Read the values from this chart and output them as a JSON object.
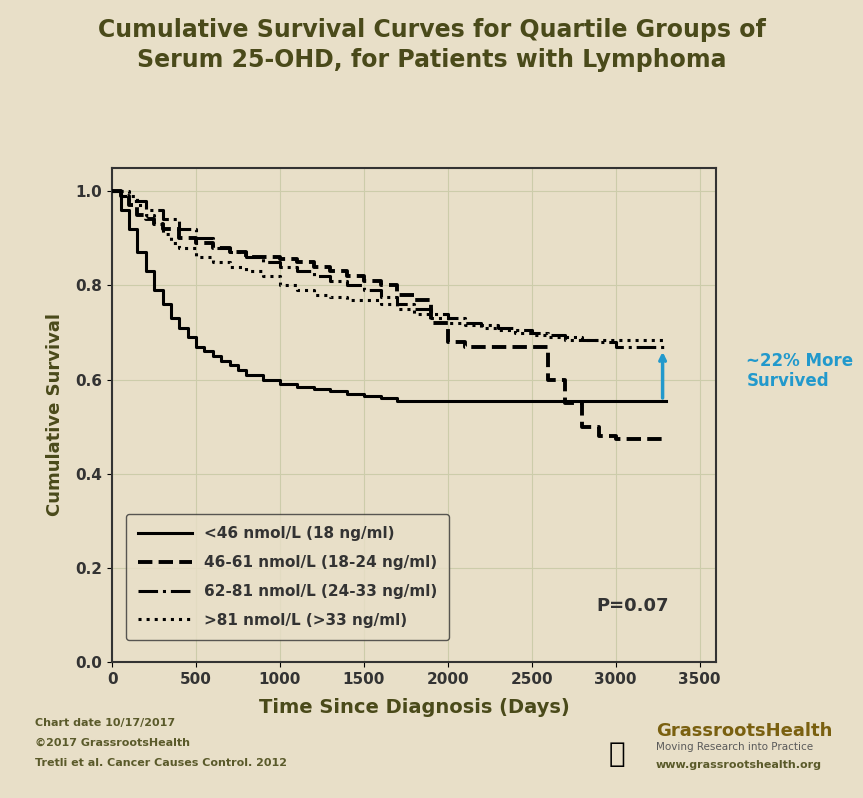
{
  "title": "Cumulative Survival Curves for Quartile Groups of\nSerum 25-OHD, for Patients with Lymphoma",
  "xlabel": "Time Since Diagnosis (Days)",
  "ylabel": "Cumulative Survival",
  "bg_color": "#e8dfc8",
  "plot_bg_color": "#e8dfc8",
  "title_color": "#4a4a1a",
  "axis_color": "#333333",
  "grid_color": "#ccccaa",
  "xlim": [
    0,
    3600
  ],
  "ylim": [
    0.0,
    1.05
  ],
  "xticks": [
    0,
    500,
    1000,
    1500,
    2000,
    2500,
    3000,
    3500
  ],
  "yticks": [
    0.0,
    0.2,
    0.4,
    0.6,
    0.8,
    1.0
  ],
  "footer_left": [
    "Chart date 10/17/2017",
    "©2017 GrassrootsHealth",
    "Tretli et al. Cancer Causes Control. 2012"
  ],
  "footer_right_line1": "GrassrootsHealth",
  "footer_right_line2": "Moving Research into Practice",
  "footer_right_line3": "www.grassrootshealth.org",
  "annotation_22pct": "~22% More\nSurvived",
  "annotation_p": "P=0.07",
  "curve1_label": "<46 nmol/L (18 ng/ml)",
  "curve2_label": "46-61 nmol/L (18-24 ng/ml)",
  "curve3_label": "62-81 nmol/L (24-33 ng/ml)",
  "curve4_label": ">81 nmol/L (>33 ng/ml)",
  "curve1_color": "#000000",
  "curve2_color": "#000000",
  "curve3_color": "#000000",
  "curve4_color": "#000000",
  "curve1_linestyle": "solid",
  "curve2_linestyle": "dashed",
  "curve3_linestyle": "dashdot",
  "curve4_linestyle": "dotted",
  "curve1_linewidth": 2.2,
  "curve2_linewidth": 2.8,
  "curve3_linewidth": 2.2,
  "curve4_linewidth": 2.2,
  "curve1_x": [
    0,
    50,
    100,
    150,
    200,
    250,
    300,
    350,
    400,
    450,
    500,
    550,
    600,
    650,
    700,
    750,
    800,
    900,
    1000,
    1100,
    1200,
    1300,
    1400,
    1500,
    1600,
    1700,
    1800,
    1900,
    2000,
    2100,
    2200,
    2300,
    2400,
    2500,
    2600,
    2700,
    2800,
    2900,
    3000,
    3100,
    3200,
    3300
  ],
  "curve1_y": [
    1.0,
    0.96,
    0.92,
    0.87,
    0.83,
    0.79,
    0.76,
    0.73,
    0.71,
    0.69,
    0.67,
    0.66,
    0.65,
    0.64,
    0.63,
    0.62,
    0.61,
    0.6,
    0.59,
    0.585,
    0.58,
    0.575,
    0.57,
    0.565,
    0.56,
    0.555,
    0.555,
    0.555,
    0.555,
    0.555,
    0.555,
    0.555,
    0.555,
    0.555,
    0.555,
    0.555,
    0.555,
    0.555,
    0.555,
    0.555,
    0.555,
    0.555
  ],
  "curve2_x": [
    0,
    50,
    100,
    150,
    200,
    250,
    300,
    400,
    500,
    600,
    700,
    800,
    900,
    1000,
    1100,
    1200,
    1300,
    1400,
    1500,
    1600,
    1700,
    1800,
    1900,
    2000,
    2100,
    2200,
    2300,
    2400,
    2500,
    2600,
    2700,
    2800,
    2900,
    3000,
    3100,
    3200,
    3300
  ],
  "curve2_y": [
    1.0,
    0.99,
    0.97,
    0.95,
    0.94,
    0.93,
    0.92,
    0.9,
    0.89,
    0.88,
    0.87,
    0.86,
    0.86,
    0.855,
    0.85,
    0.84,
    0.83,
    0.82,
    0.81,
    0.8,
    0.78,
    0.77,
    0.72,
    0.68,
    0.67,
    0.67,
    0.67,
    0.67,
    0.67,
    0.6,
    0.55,
    0.5,
    0.48,
    0.475,
    0.475,
    0.475,
    0.475
  ],
  "curve3_x": [
    0,
    50,
    100,
    200,
    300,
    400,
    500,
    600,
    700,
    800,
    900,
    1000,
    1100,
    1200,
    1300,
    1400,
    1500,
    1600,
    1700,
    1800,
    1900,
    2000,
    2100,
    2200,
    2300,
    2400,
    2500,
    2600,
    2700,
    2800,
    2900,
    3000,
    3100,
    3200,
    3300
  ],
  "curve3_y": [
    1.0,
    0.99,
    0.98,
    0.96,
    0.94,
    0.92,
    0.9,
    0.88,
    0.87,
    0.86,
    0.85,
    0.84,
    0.83,
    0.82,
    0.81,
    0.8,
    0.79,
    0.775,
    0.76,
    0.75,
    0.74,
    0.73,
    0.72,
    0.715,
    0.71,
    0.705,
    0.7,
    0.695,
    0.69,
    0.685,
    0.68,
    0.67,
    0.67,
    0.67,
    0.67
  ],
  "curve4_x": [
    0,
    50,
    100,
    150,
    200,
    250,
    300,
    350,
    400,
    500,
    600,
    700,
    800,
    900,
    1000,
    1100,
    1200,
    1300,
    1400,
    1500,
    1600,
    1700,
    1800,
    1900,
    2000,
    2100,
    2200,
    2300,
    2400,
    2500,
    2600,
    2700,
    2800,
    2900,
    3000,
    3100,
    3200,
    3300
  ],
  "curve4_y": [
    1.0,
    1.0,
    0.99,
    0.97,
    0.95,
    0.93,
    0.91,
    0.89,
    0.88,
    0.86,
    0.85,
    0.84,
    0.83,
    0.82,
    0.8,
    0.79,
    0.78,
    0.775,
    0.77,
    0.77,
    0.76,
    0.75,
    0.74,
    0.73,
    0.72,
    0.715,
    0.71,
    0.705,
    0.7,
    0.695,
    0.69,
    0.685,
    0.685,
    0.685,
    0.685,
    0.685,
    0.685,
    0.685
  ]
}
